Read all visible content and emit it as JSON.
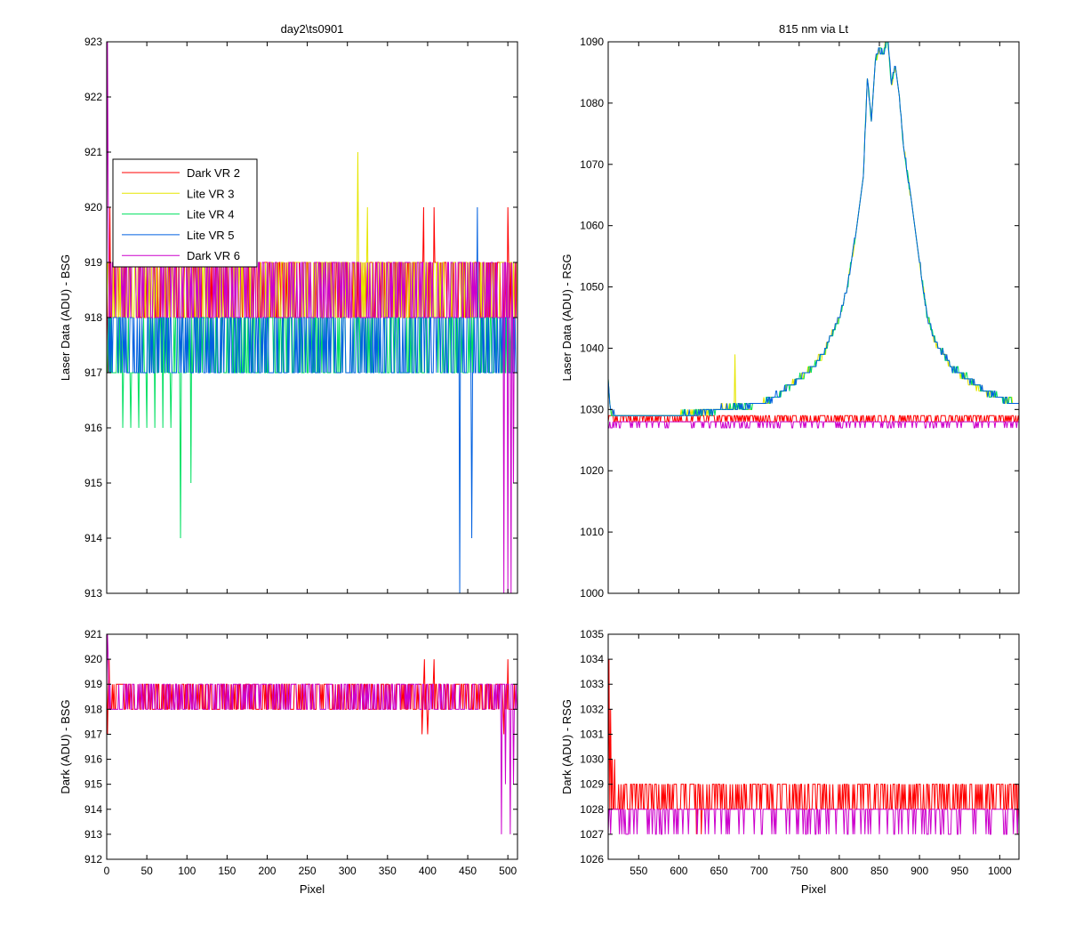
{
  "chart_data": [
    {
      "id": "left_top",
      "type": "line",
      "title": "day2\\ts0901",
      "xlabel": "",
      "ylabel": "Laser Data (ADU) - BSG",
      "xlim": [
        0,
        512
      ],
      "ylim": [
        913,
        923
      ],
      "xticks": [
        0,
        50,
        100,
        150,
        200,
        250,
        300,
        350,
        400,
        450,
        500
      ],
      "show_xtick_labels": false,
      "yticks": [
        913,
        914,
        915,
        916,
        917,
        918,
        919,
        920,
        921,
        922,
        923
      ],
      "legend": {
        "placement": "upper-left",
        "entries": [
          "Dark VR 2",
          "Lite VR 3",
          "Lite VR 4",
          "Lite VR 5",
          "Dark VR 6"
        ]
      },
      "series": [
        {
          "name": "Dark VR 2",
          "color": "#ff0000",
          "baseline": 918,
          "noise": "918-919",
          "spikes": [
            [
              2,
              917
            ],
            [
              4,
              920
            ],
            [
              395,
              920
            ],
            [
              408,
              920
            ],
            [
              500,
              920
            ]
          ]
        },
        {
          "name": "Lite VR 3",
          "color": "#e6e600",
          "baseline": 918,
          "noise": "918-919",
          "spikes": [
            [
              313,
              921
            ],
            [
              325,
              920
            ]
          ]
        },
        {
          "name": "Lite VR 4",
          "color": "#00e060",
          "baseline": 917,
          "noise": "917-918",
          "spikes": [
            [
              20,
              916
            ],
            [
              30,
              916
            ],
            [
              40,
              916
            ],
            [
              50,
              916
            ],
            [
              60,
              916
            ],
            [
              70,
              916
            ],
            [
              80,
              916
            ],
            [
              92,
              914
            ],
            [
              105,
              915
            ]
          ]
        },
        {
          "name": "Lite VR 5",
          "color": "#0060e0",
          "baseline": 917,
          "noise": "917-918",
          "spikes": [
            [
              440,
              913
            ],
            [
              455,
              914
            ],
            [
              462,
              920
            ]
          ]
        },
        {
          "name": "Dark VR 6",
          "color": "#cc00cc",
          "baseline": 918,
          "noise": "918-919",
          "spikes": [
            [
              1,
              923
            ],
            [
              2,
              920
            ],
            [
              495,
              913
            ],
            [
              500,
              913
            ],
            [
              504,
              913
            ],
            [
              507,
              915
            ]
          ]
        }
      ]
    },
    {
      "id": "right_top",
      "type": "line",
      "title": "815 nm via Lt",
      "xlabel": "",
      "ylabel": "Laser Data (ADU) - RSG",
      "xlim": [
        512,
        1024
      ],
      "ylim": [
        1000,
        1090
      ],
      "xticks": [
        550,
        600,
        650,
        700,
        750,
        800,
        850,
        900,
        950,
        1000
      ],
      "show_xtick_labels": false,
      "yticks": [
        1000,
        1010,
        1020,
        1030,
        1040,
        1050,
        1060,
        1070,
        1080,
        1090
      ],
      "peak": {
        "x": [
          512,
          515,
          520,
          530,
          550,
          600,
          650,
          680,
          700,
          720,
          740,
          760,
          780,
          800,
          810,
          820,
          830,
          835,
          840,
          845,
          850,
          855,
          860,
          865,
          870,
          875,
          880,
          890,
          900,
          910,
          920,
          930,
          940,
          950,
          960,
          970,
          980,
          990,
          1000,
          1010,
          1020,
          1024
        ],
        "y": [
          1035,
          1030,
          1029,
          1029,
          1029,
          1029,
          1030,
          1030.5,
          1031,
          1032,
          1034,
          1036,
          1039,
          1045,
          1050,
          1058,
          1068,
          1084,
          1077,
          1087,
          1089,
          1088,
          1091,
          1083,
          1086,
          1081,
          1073,
          1064,
          1054,
          1045,
          1041,
          1039,
          1037,
          1036,
          1035,
          1034,
          1033,
          1032.5,
          1032,
          1031.5,
          1031,
          1031
        ]
      },
      "series": [
        {
          "name": "Dark VR 2",
          "color": "#ff0000",
          "baseline": 1028,
          "noise": "1028-1029"
        },
        {
          "name": "Lite VR 3",
          "color": "#e6e600",
          "follows": "peak",
          "spikes": [
            [
              670,
              1039
            ]
          ]
        },
        {
          "name": "Lite VR 4",
          "color": "#00e060",
          "follows": "peak"
        },
        {
          "name": "Lite VR 5",
          "color": "#0060e0",
          "follows": "peak"
        },
        {
          "name": "Dark VR 6",
          "color": "#cc00cc",
          "baseline": 1028,
          "noise": "1027-1028"
        }
      ]
    },
    {
      "id": "left_bottom",
      "type": "line",
      "title": "",
      "xlabel": "Pixel",
      "ylabel": "Dark (ADU) - BSG",
      "xlim": [
        0,
        512
      ],
      "ylim": [
        912,
        921
      ],
      "xticks": [
        0,
        50,
        100,
        150,
        200,
        250,
        300,
        350,
        400,
        450,
        500
      ],
      "show_xtick_labels": true,
      "yticks": [
        912,
        913,
        914,
        915,
        916,
        917,
        918,
        919,
        920,
        921
      ],
      "series": [
        {
          "name": "Dark VR 2",
          "color": "#ff0000",
          "baseline": 918,
          "noise": "918-919",
          "spikes": [
            [
              1,
              917
            ],
            [
              3,
              920
            ],
            [
              393,
              917
            ],
            [
              396,
              920
            ],
            [
              400,
              917
            ],
            [
              408,
              920
            ],
            [
              495,
              917
            ],
            [
              500,
              920
            ]
          ]
        },
        {
          "name": "Dark VR 6",
          "color": "#cc00cc",
          "baseline": 918,
          "noise": "918-919",
          "spikes": [
            [
              1,
              921
            ],
            [
              2,
              920
            ],
            [
              492,
              913
            ],
            [
              497,
              915
            ],
            [
              503,
              913
            ],
            [
              507,
              915
            ]
          ]
        }
      ]
    },
    {
      "id": "right_bottom",
      "type": "line",
      "title": "",
      "xlabel": "Pixel",
      "ylabel": "Dark (ADU) - RSG",
      "xlim": [
        512,
        1024
      ],
      "ylim": [
        1026,
        1035
      ],
      "xticks": [
        550,
        600,
        650,
        700,
        750,
        800,
        850,
        900,
        950,
        1000
      ],
      "show_xtick_labels": true,
      "yticks": [
        1026,
        1027,
        1028,
        1029,
        1030,
        1031,
        1032,
        1033,
        1034,
        1035
      ],
      "series": [
        {
          "name": "Dark VR 2",
          "color": "#ff0000",
          "baseline": 1028,
          "noise": "1028-1029",
          "spikes": [
            [
              513,
              1034
            ],
            [
              515,
              1032
            ],
            [
              517,
              1030
            ],
            [
              520,
              1030
            ],
            [
              622,
              1027
            ],
            [
              628,
              1027
            ],
            [
              1022,
              1027
            ]
          ]
        },
        {
          "name": "Dark VR 6",
          "color": "#cc00cc",
          "baseline": 1028,
          "noise": "1027-1028"
        }
      ]
    }
  ]
}
